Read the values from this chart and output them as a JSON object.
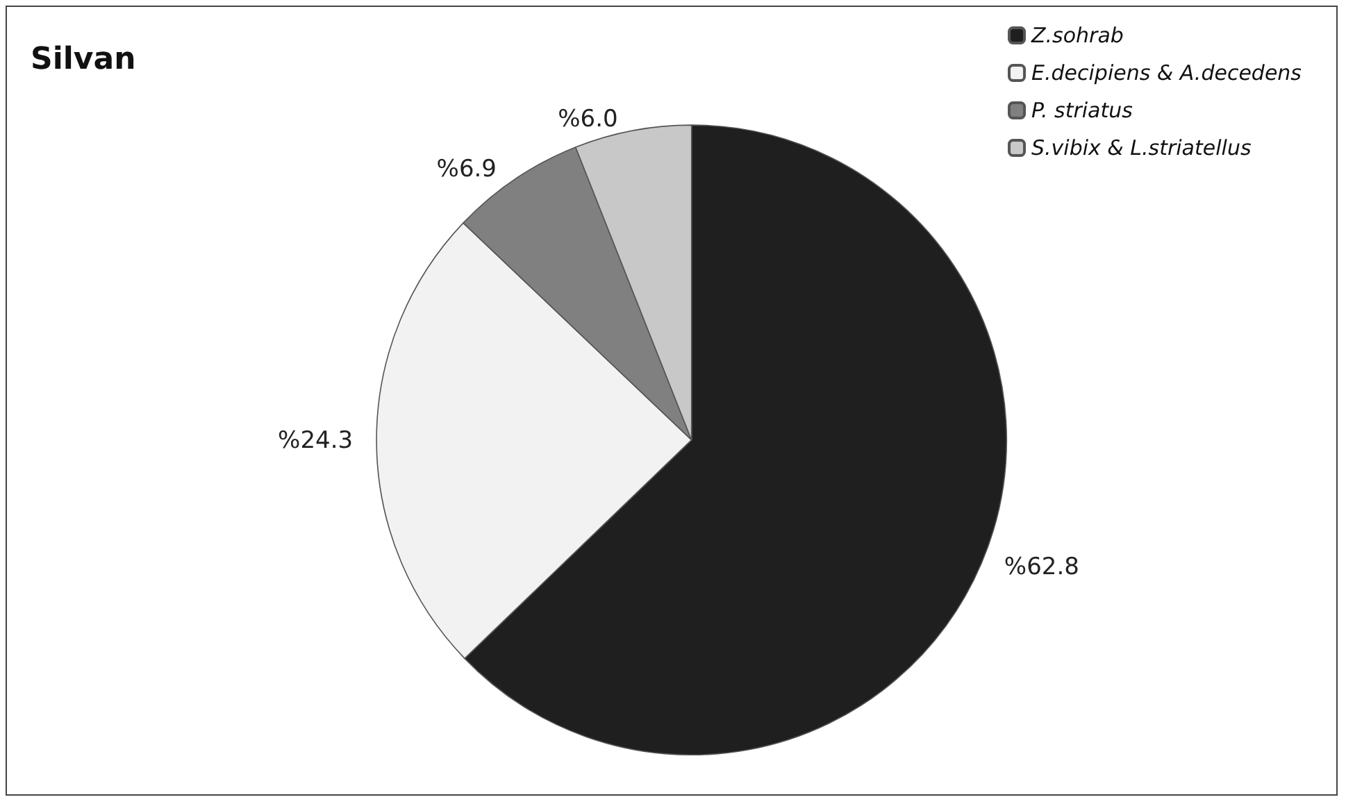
{
  "chart_data": {
    "type": "pie",
    "title": "Silvan",
    "categories": [
      "Z.sohrab",
      "E.decipiens & A.decedens",
      "P. striatus",
      "S.vibix & L.striatellus"
    ],
    "values": [
      62.8,
      24.3,
      6.9,
      6.0
    ],
    "value_labels": [
      "%62.8",
      "%24.3",
      "%6.9",
      "%6.0"
    ],
    "colors": [
      "#1f1f1f",
      "#f2f2f2",
      "#808080",
      "#c8c8c8"
    ],
    "legend": "top right"
  }
}
